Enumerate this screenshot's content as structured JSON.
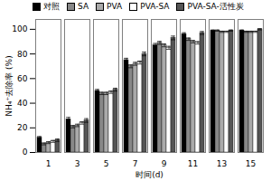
{
  "chart_data": {
    "type": "bar",
    "xlabel": "时间(d)",
    "ylabel": "NH₄⁺去除率 (%)",
    "categories": [
      1,
      3,
      5,
      7,
      9,
      11,
      13,
      15
    ],
    "series": [
      {
        "name": "对照",
        "color": "black",
        "values": [
          12,
          27,
          50,
          75,
          87,
          96,
          99,
          99
        ],
        "errors": [
          1.0,
          1.5,
          1.2,
          1.5,
          1.5,
          1.2,
          0.5,
          0.5
        ]
      },
      {
        "name": "SA",
        "color": "#888888",
        "values": [
          7,
          21,
          48,
          70,
          89,
          92,
          99,
          98
        ],
        "errors": [
          0.8,
          1.0,
          1.0,
          1.2,
          1.2,
          1.0,
          0.5,
          0.5
        ]
      },
      {
        "name": "PVA",
        "color": "#aaaaaa",
        "values": [
          8,
          22,
          48,
          72,
          87,
          90,
          98,
          98
        ],
        "errors": [
          0.8,
          1.0,
          1.0,
          1.2,
          1.2,
          1.0,
          0.5,
          0.5
        ]
      },
      {
        "name": "PVA-SA",
        "color": "white",
        "values": [
          9,
          24,
          49,
          73,
          85,
          89,
          98,
          98
        ],
        "errors": [
          0.8,
          1.0,
          1.0,
          1.2,
          1.2,
          1.0,
          0.5,
          0.5
        ]
      },
      {
        "name": "PVA-SA-活性炭",
        "color": "#555555",
        "values": [
          10,
          26,
          51,
          80,
          93,
          97,
          99,
          100
        ],
        "errors": [
          1.0,
          1.5,
          1.2,
          1.5,
          1.5,
          1.2,
          0.5,
          0.5
        ]
      }
    ],
    "ylim": [
      0,
      108
    ],
    "yticks": [
      0,
      20,
      40,
      60,
      80,
      100
    ],
    "grid": false,
    "legend": "upper left"
  }
}
